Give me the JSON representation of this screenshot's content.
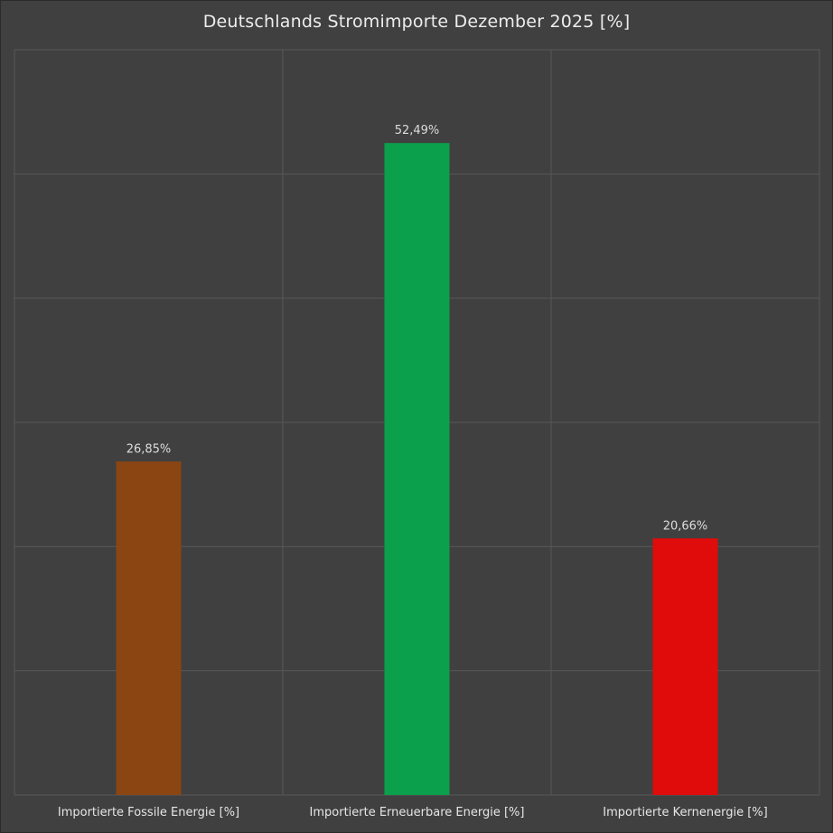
{
  "chart_data": {
    "type": "bar",
    "title": "Deutschlands Stromimporte Dezember 2025 [%]",
    "categories": [
      "Importierte Fossile Energie [%]",
      "Importierte Erneuerbare Energie [%]",
      "Importierte Kernenergie [%]"
    ],
    "values": [
      26.85,
      52.49,
      20.66
    ],
    "value_labels": [
      "26,85%",
      "52,49%",
      "20,66%"
    ],
    "colors": [
      "#8b4513",
      "#0ba04c",
      "#e00b0b"
    ],
    "ylim": [
      0,
      60
    ],
    "grid": true,
    "background": "#404040"
  }
}
